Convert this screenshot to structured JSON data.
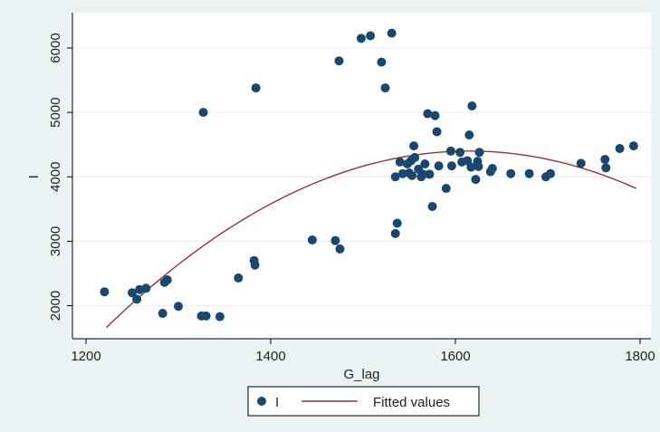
{
  "chart_data": {
    "type": "scatter",
    "xlabel": "G_lag",
    "ylabel": "I",
    "xlim": [
      1200,
      1800
    ],
    "ylim": [
      1550,
      6300
    ],
    "xticks": [
      1200,
      1400,
      1600,
      1800
    ],
    "yticks": [
      2000,
      3000,
      4000,
      5000,
      6000
    ],
    "grid": "horizontal",
    "legend_position": "bottom-center",
    "colors": {
      "outer_background": "#eaf2f3",
      "plot_background": "#ffffff",
      "grid": "#e4ecee",
      "axis": "#000000",
      "points": "#1a476f",
      "fit_line": "#90353b"
    },
    "series": [
      {
        "name": "I",
        "kind": "scatter",
        "points": [
          [
            1220,
            2215
          ],
          [
            1250,
            2200
          ],
          [
            1255,
            2100
          ],
          [
            1258,
            2250
          ],
          [
            1265,
            2270
          ],
          [
            1283,
            1880
          ],
          [
            1285,
            2360
          ],
          [
            1288,
            2400
          ],
          [
            1300,
            1990
          ],
          [
            1325,
            1840
          ],
          [
            1327,
            5000
          ],
          [
            1330,
            1840
          ],
          [
            1345,
            1830
          ],
          [
            1365,
            2430
          ],
          [
            1382,
            2700
          ],
          [
            1383,
            2630
          ],
          [
            1384,
            5380
          ],
          [
            1445,
            3020
          ],
          [
            1470,
            3010
          ],
          [
            1474,
            5800
          ],
          [
            1475,
            2880
          ],
          [
            1498,
            6150
          ],
          [
            1508,
            6190
          ],
          [
            1520,
            5780
          ],
          [
            1524,
            5380
          ],
          [
            1531,
            6230
          ],
          [
            1535,
            3120
          ],
          [
            1537,
            3280
          ],
          [
            1535,
            4000
          ],
          [
            1540,
            4230
          ],
          [
            1543,
            4050
          ],
          [
            1548,
            4200
          ],
          [
            1550,
            4060
          ],
          [
            1552,
            4250
          ],
          [
            1553,
            4020
          ],
          [
            1555,
            4480
          ],
          [
            1556,
            4300
          ],
          [
            1560,
            4120
          ],
          [
            1563,
            4000
          ],
          [
            1565,
            4040
          ],
          [
            1567,
            4200
          ],
          [
            1570,
            4980
          ],
          [
            1572,
            4040
          ],
          [
            1575,
            3540
          ],
          [
            1578,
            4950
          ],
          [
            1580,
            4700
          ],
          [
            1582,
            4170
          ],
          [
            1590,
            3820
          ],
          [
            1595,
            4400
          ],
          [
            1596,
            4170
          ],
          [
            1605,
            4380
          ],
          [
            1607,
            4230
          ],
          [
            1613,
            4250
          ],
          [
            1615,
            4650
          ],
          [
            1617,
            4150
          ],
          [
            1618,
            5100
          ],
          [
            1622,
            3960
          ],
          [
            1624,
            4240
          ],
          [
            1625,
            4160
          ],
          [
            1626,
            4380
          ],
          [
            1638,
            4080
          ],
          [
            1640,
            4130
          ],
          [
            1660,
            4050
          ],
          [
            1680,
            4050
          ],
          [
            1698,
            4000
          ],
          [
            1703,
            4050
          ],
          [
            1736,
            4210
          ],
          [
            1762,
            4270
          ],
          [
            1763,
            4140
          ],
          [
            1778,
            4440
          ],
          [
            1793,
            4480
          ]
        ]
      },
      {
        "name": "Fitted values",
        "kind": "quadratic-fit",
        "x_range": [
          1222,
          1796
        ],
        "vertex_x": 1615,
        "vertex_y": 4400,
        "curvature": -0.01774
      }
    ]
  }
}
